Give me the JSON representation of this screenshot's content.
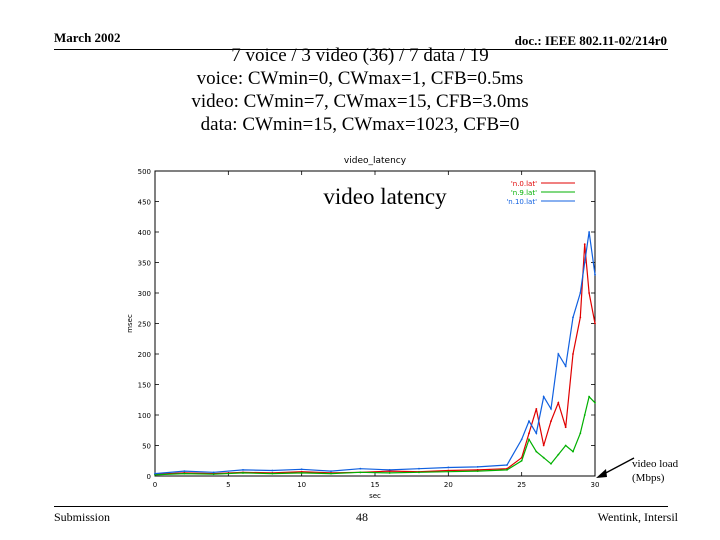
{
  "header": {
    "date": "March 2002",
    "doc_id": "doc.: IEEE 802.11-02/214r0"
  },
  "slide_title": [
    "7 voice / 3 video (36) / 7 data / 19",
    "voice: CWmin=0, CWmax=1, CFB=0.5ms",
    "video: CWmin=7, CWmax=15, CFB=3.0ms",
    "data: CWmin=15, CWmax=1023, CFB=0"
  ],
  "overlay_label": "video latency",
  "annotation": {
    "line1": "video load",
    "line2": "(Mbps)"
  },
  "footer": {
    "left": "Submission",
    "page": "48",
    "right": "Wentink, Intersil"
  },
  "colors": {
    "series_red": "#e00000",
    "series_green": "#00b000",
    "series_blue": "#1060e0"
  },
  "chart_data": {
    "type": "line",
    "title": "video_latency",
    "xlabel": "sec",
    "ylabel": "msec",
    "xlim": [
      0,
      30
    ],
    "ylim": [
      0,
      500
    ],
    "x_ticks": [
      0,
      5,
      10,
      15,
      20,
      25,
      30
    ],
    "y_ticks": [
      0,
      50,
      100,
      150,
      200,
      250,
      300,
      350,
      400,
      450,
      500
    ],
    "grid": false,
    "legend_position": "top-right",
    "series": [
      {
        "name": "'n.0.lat'",
        "color": "#e00000",
        "x": [
          0,
          2,
          4,
          6,
          8,
          10,
          12,
          14,
          16,
          18,
          20,
          22,
          24,
          25,
          25.5,
          26,
          26.5,
          27,
          27.5,
          28,
          28.5,
          29,
          29.3,
          29.6,
          30
        ],
        "values": [
          3,
          5,
          4,
          6,
          5,
          7,
          5,
          6,
          8,
          7,
          9,
          10,
          12,
          30,
          70,
          110,
          50,
          90,
          120,
          80,
          200,
          260,
          380,
          300,
          250
        ]
      },
      {
        "name": "'n.9.lat'",
        "color": "#00b000",
        "x": [
          0,
          2,
          4,
          6,
          8,
          10,
          12,
          14,
          16,
          18,
          20,
          22,
          24,
          25,
          25.5,
          26,
          26.5,
          27,
          27.5,
          28,
          28.5,
          29,
          29.3,
          29.6,
          30
        ],
        "values": [
          2,
          4,
          3,
          5,
          4,
          5,
          4,
          6,
          5,
          6,
          7,
          8,
          10,
          25,
          60,
          40,
          30,
          20,
          35,
          50,
          40,
          70,
          100,
          130,
          120
        ]
      },
      {
        "name": "'n.10.lat'",
        "color": "#1060e0",
        "x": [
          0,
          2,
          4,
          6,
          8,
          10,
          12,
          14,
          16,
          18,
          20,
          22,
          24,
          25,
          25.5,
          26,
          26.5,
          27,
          27.5,
          28,
          28.5,
          29,
          29.3,
          29.6,
          30
        ],
        "values": [
          4,
          8,
          6,
          10,
          9,
          11,
          8,
          12,
          10,
          12,
          14,
          15,
          18,
          60,
          90,
          70,
          130,
          110,
          200,
          180,
          260,
          300,
          350,
          400,
          330
        ]
      }
    ]
  }
}
